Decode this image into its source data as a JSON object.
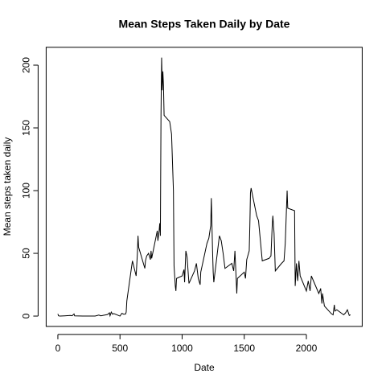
{
  "chart_data": {
    "type": "line",
    "title": "Mean Steps Taken Daily by Date",
    "x_label": "Date",
    "y_label": "Mean steps taken daily",
    "x": [
      0,
      5,
      10,
      20,
      55,
      100,
      115,
      130,
      135,
      200,
      230,
      300,
      330,
      345,
      400,
      415,
      420,
      430,
      440,
      450,
      500,
      515,
      530,
      545,
      550,
      555,
      600,
      615,
      630,
      640,
      645,
      650,
      700,
      705,
      715,
      730,
      745,
      750,
      755,
      800,
      805,
      815,
      820,
      825,
      830,
      835,
      840,
      845,
      850,
      855,
      900,
      915,
      930,
      935,
      945,
      950,
      955,
      1000,
      1015,
      1020,
      1030,
      1040,
      1055,
      1100,
      1115,
      1130,
      1145,
      1150,
      1200,
      1215,
      1230,
      1235,
      1245,
      1250,
      1255,
      1300,
      1315,
      1330,
      1345,
      1400,
      1415,
      1425,
      1440,
      1445,
      1500,
      1510,
      1520,
      1540,
      1545,
      1550,
      1555,
      1600,
      1615,
      1630,
      1645,
      1700,
      1715,
      1725,
      1730,
      1740,
      1750,
      1800,
      1820,
      1830,
      1845,
      1850,
      1905,
      1910,
      1920,
      1930,
      1940,
      1950,
      2000,
      2015,
      2030,
      2040,
      2100,
      2115,
      2125,
      2130,
      2145,
      2200,
      2215,
      2225,
      2230,
      2245,
      2300,
      2315,
      2330,
      2345,
      2355
    ],
    "series": [
      {
        "color": "#000000",
        "values": [
          1.7,
          0.3,
          0.1,
          0,
          0.2,
          0.5,
          0.3,
          1.7,
          0.2,
          0,
          0,
          0,
          0.8,
          0.2,
          1.2,
          2.6,
          0.3,
          3.2,
          1.5,
          2,
          0,
          2.2,
          1.5,
          1.6,
          3.2,
          12,
          44,
          38,
          32,
          50,
          64,
          55,
          38,
          44,
          48,
          50,
          45,
          52,
          46,
          68,
          60,
          68,
          74,
          64,
          160,
          206,
          180,
          195,
          184,
          160,
          155,
          145,
          100,
          40,
          24,
          20,
          30,
          32,
          37,
          27,
          52,
          47,
          26,
          36,
          42,
          30,
          25,
          35,
          58,
          62,
          72,
          94,
          52,
          35,
          27,
          64,
          60,
          50,
          38,
          42,
          36,
          52,
          18,
          30,
          35,
          30,
          45,
          52,
          72,
          98,
          102,
          80,
          76,
          60,
          44,
          46,
          48,
          72,
          80,
          66,
          36,
          42,
          44,
          58,
          100,
          86,
          84,
          24,
          42,
          28,
          44,
          32,
          20,
          28,
          20,
          32,
          18,
          22,
          10,
          18,
          8,
          2,
          1,
          9,
          4,
          5,
          1,
          2.5,
          5,
          0.5,
          1
        ]
      }
    ],
    "xlim": [
      -94.2,
      2449.2
    ],
    "ylim": [
      -8.24,
      214.24
    ],
    "xticks": [
      0,
      500,
      1000,
      1500,
      2000
    ],
    "yticks": [
      0,
      50,
      100,
      150,
      200
    ]
  }
}
